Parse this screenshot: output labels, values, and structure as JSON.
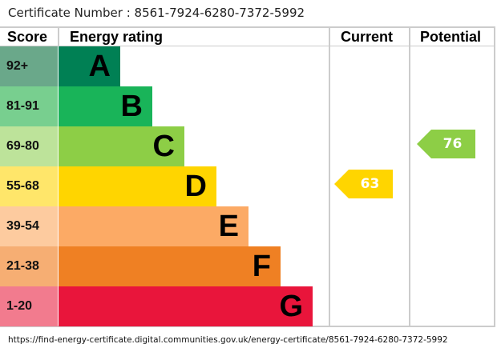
{
  "certificate_label": "Certificate Number : 8561-7924-6280-7372-5992",
  "headers": {
    "score": "Score",
    "rating": "Energy rating",
    "current": "Current",
    "potential": "Potential"
  },
  "chart_data": {
    "type": "bar",
    "bands": [
      {
        "score": "92+",
        "letter": "A",
        "color": "#008054",
        "score_color": "#6aa88a"
      },
      {
        "score": "81-91",
        "letter": "B",
        "color": "#19b459",
        "score_color": "#78cf8f"
      },
      {
        "score": "69-80",
        "letter": "C",
        "color": "#8dce46",
        "score_color": "#bde39a"
      },
      {
        "score": "55-68",
        "letter": "D",
        "color": "#ffd500",
        "score_color": "#ffe66a"
      },
      {
        "score": "39-54",
        "letter": "E",
        "color": "#fcaa65",
        "score_color": "#fdcb9f"
      },
      {
        "score": "21-38",
        "letter": "F",
        "color": "#ef8023",
        "score_color": "#f6ae73"
      },
      {
        "score": "1-20",
        "letter": "G",
        "color": "#e9153b",
        "score_color": "#f27b8e"
      }
    ],
    "current": {
      "value": 63,
      "label": "63",
      "band": "D",
      "color": "#ffd500"
    },
    "potential": {
      "value": 76,
      "label": "76",
      "band": "C",
      "color": "#8dce46"
    }
  },
  "footer_url": "https://find-energy-certificate.digital.communities.gov.uk/energy-certificate/8561-7924-6280-7372-5992"
}
